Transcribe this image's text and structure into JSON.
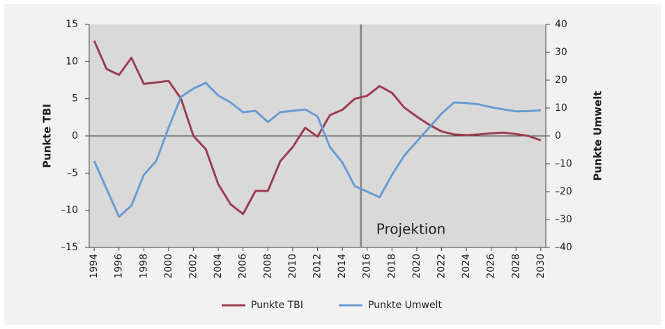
{
  "chart_data": {
    "type": "line",
    "x": [
      1994,
      1995,
      1996,
      1997,
      1998,
      1999,
      2000,
      2001,
      2002,
      2003,
      2004,
      2005,
      2006,
      2007,
      2008,
      2009,
      2010,
      2011,
      2012,
      2013,
      2014,
      2015,
      2016,
      2017,
      2018,
      2019,
      2020,
      2021,
      2022,
      2023,
      2024,
      2025,
      2026,
      2027,
      2028,
      2029,
      2030
    ],
    "xlim": [
      1993.6,
      2030.4
    ],
    "xticks": [
      1994,
      1996,
      1998,
      2000,
      2002,
      2004,
      2006,
      2008,
      2010,
      2012,
      2014,
      2016,
      2018,
      2020,
      2022,
      2024,
      2026,
      2028,
      2030
    ],
    "ylabel": "Punkte TBI",
    "y2label": "Punkte Umwelt",
    "ylim": [
      -15,
      15
    ],
    "yticks": [
      {
        "value": -15,
        "label": "–15"
      },
      {
        "value": -10,
        "label": "–10"
      },
      {
        "value": -5,
        "label": "–5"
      },
      0,
      5,
      10,
      15
    ],
    "y2lim": [
      -40,
      40
    ],
    "y2ticks": [
      {
        "value": -40,
        "label": "–40"
      },
      {
        "value": -30,
        "label": "–30"
      },
      {
        "value": -20,
        "label": "–20"
      },
      {
        "value": -10,
        "label": "–10"
      },
      0,
      10,
      20,
      30,
      40
    ],
    "annotation": {
      "text": "Projektion",
      "x": 2015.5
    },
    "legend": "bottom",
    "series": [
      {
        "name": "Punkte TBI",
        "color": "#9b3d52",
        "axis": "y",
        "values": [
          12.8,
          9.0,
          8.2,
          10.5,
          7.0,
          7.2,
          7.4,
          5.0,
          0.0,
          -1.8,
          -6.5,
          -9.2,
          -10.5,
          -7.4,
          -7.4,
          -3.4,
          -1.5,
          1.1,
          -0.1,
          2.8,
          3.5,
          5.0,
          5.4,
          6.7,
          5.8,
          3.8,
          2.6,
          1.5,
          0.6,
          0.2,
          0.1,
          0.2,
          0.35,
          0.45,
          0.25,
          0.0,
          -0.6
        ]
      },
      {
        "name": "Punkte Umwelt",
        "color": "#6a9bd1",
        "axis": "y2",
        "values": [
          -9,
          -19,
          -29,
          -25,
          -14,
          -9,
          3,
          14,
          17,
          19,
          14.5,
          12,
          8.5,
          9,
          5,
          8.5,
          9,
          9.5,
          7,
          -4,
          -9.5,
          -18,
          -20,
          -22,
          -14,
          -7,
          -2,
          3,
          8,
          12,
          11.8,
          11.3,
          10.3,
          9.5,
          8.8,
          8.9,
          9.2
        ]
      }
    ]
  }
}
